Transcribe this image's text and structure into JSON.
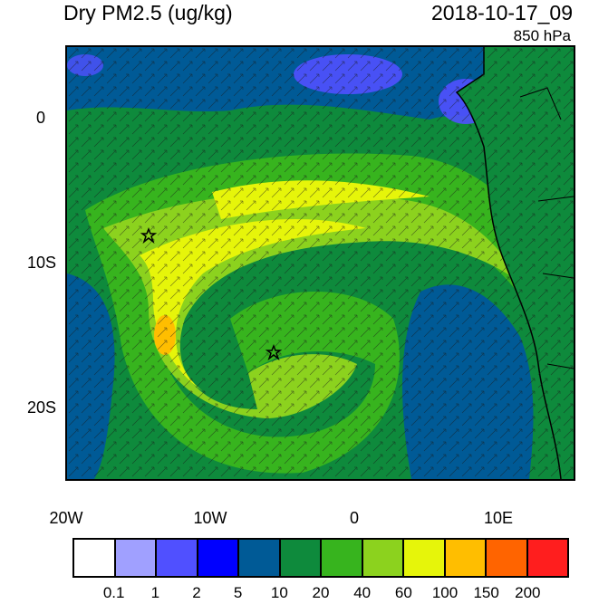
{
  "header": {
    "title": "Dry PM2.5 (ug/kg)",
    "datetime": "2018-10-17_09",
    "level": "850 hPa"
  },
  "map": {
    "lon_range": [
      -20,
      15
    ],
    "lat_range": [
      -25,
      5
    ],
    "lat_labels": [
      "0",
      "10S",
      "20S"
    ],
    "lon_labels": [
      "20W",
      "10W",
      "0",
      "10E"
    ],
    "markers": [
      {
        "name": "star",
        "lon": -14.5,
        "lat": -8.0
      },
      {
        "name": "star",
        "lon": -5.7,
        "lat": -16.0
      }
    ]
  },
  "colorbar": {
    "colors": [
      "#ffffff",
      "#a0a0ff",
      "#5050ff",
      "#0000ff",
      "#005a96",
      "#0e8a3c",
      "#37b41e",
      "#8cd21e",
      "#e6f50a",
      "#ffbe00",
      "#ff6400",
      "#ff1e1e"
    ],
    "labels": [
      "0.1",
      "1",
      "2",
      "5",
      "10",
      "20",
      "40",
      "60",
      "100",
      "150",
      "200"
    ]
  }
}
